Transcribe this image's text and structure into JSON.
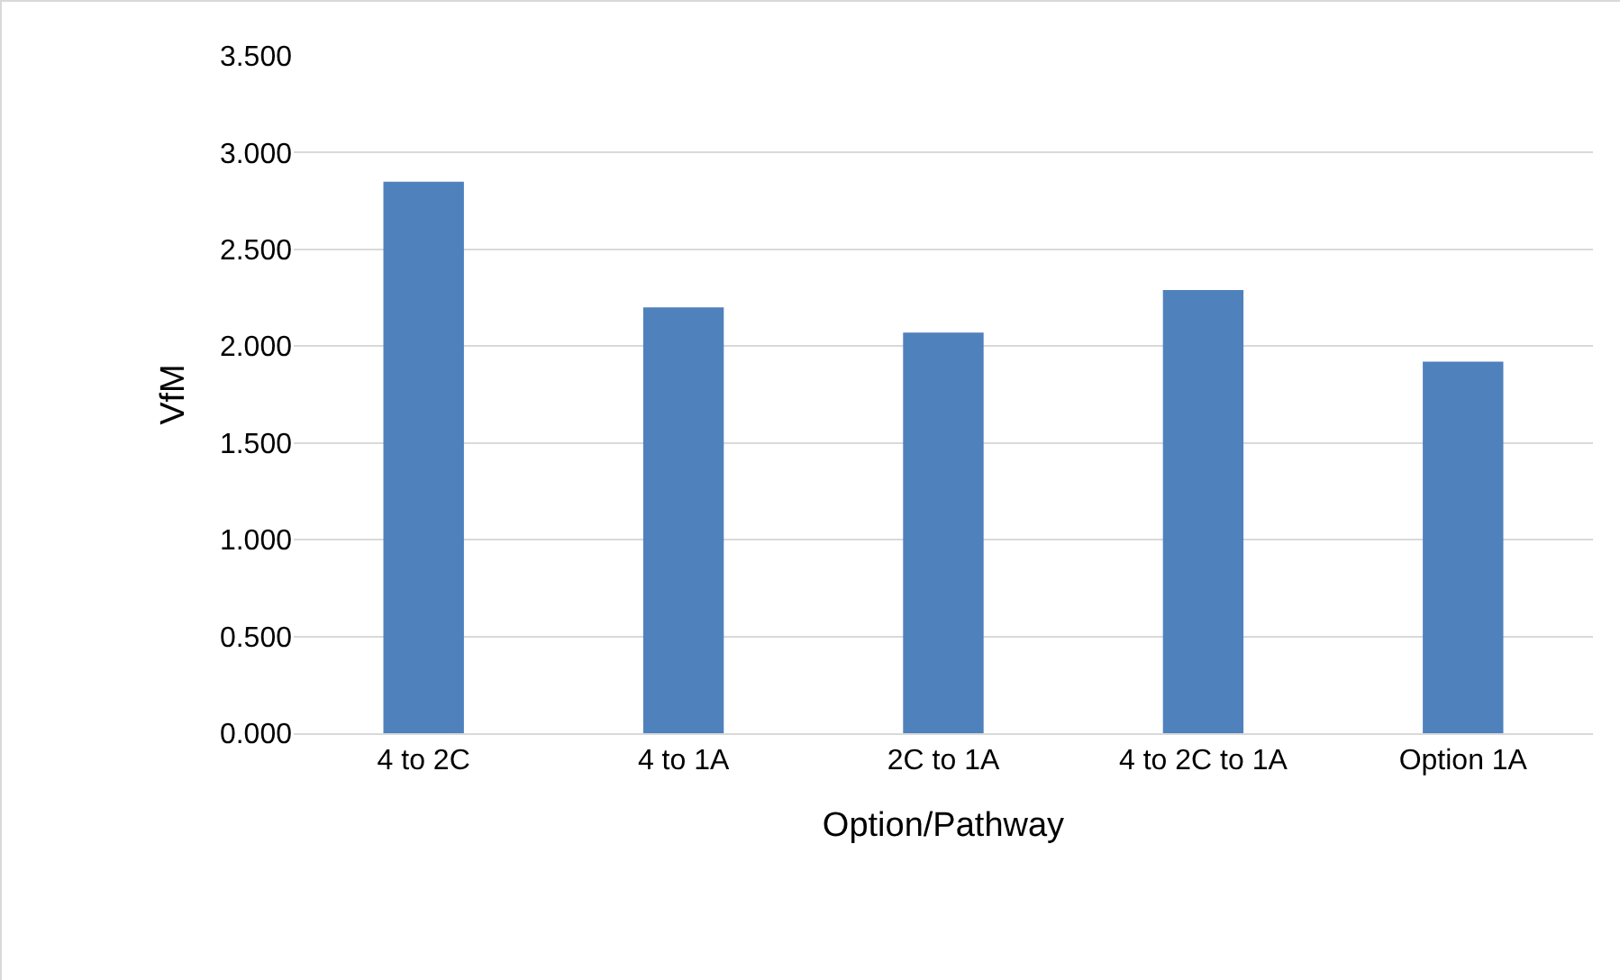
{
  "chart_data": {
    "type": "bar",
    "xlabel": "Option/Pathway",
    "ylabel": "VfM",
    "categories": [
      "4 to 2C",
      "4 to 1A",
      "2C to 1A",
      "4 to 2C to 1A",
      "Option 1A"
    ],
    "values": [
      2.85,
      2.2,
      2.07,
      2.29,
      1.92
    ],
    "color": "#4f81bd",
    "ylim": [
      0,
      3.5
    ],
    "yticks": [
      {
        "value": 0,
        "label": "0.000"
      },
      {
        "value": 0.5,
        "label": "0.500"
      },
      {
        "value": 1,
        "label": "1.000"
      },
      {
        "value": 1.5,
        "label": "1.500"
      },
      {
        "value": 2,
        "label": "2.000"
      },
      {
        "value": 2.5,
        "label": "2.500"
      },
      {
        "value": 3,
        "label": "3.000"
      },
      {
        "value": 3.5,
        "label": "3.500"
      }
    ],
    "grid": "y"
  }
}
